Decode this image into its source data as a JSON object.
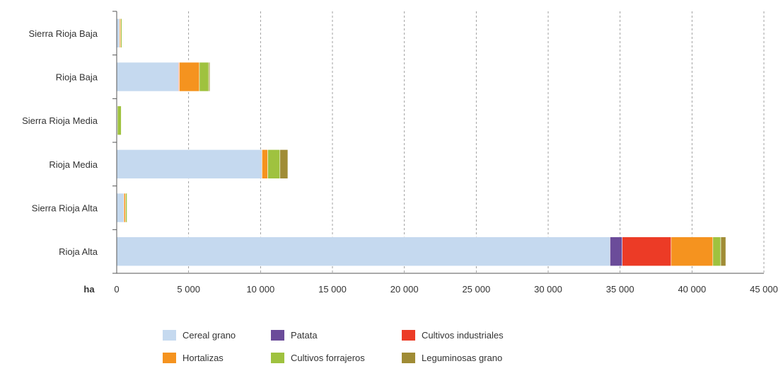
{
  "chart_data": {
    "type": "bar",
    "orientation": "horizontal",
    "stacked": true,
    "title": "",
    "xlabel": "ha",
    "ylabel": "",
    "xlim": [
      0,
      45000
    ],
    "x_ticks": [
      0,
      5000,
      10000,
      15000,
      20000,
      25000,
      30000,
      35000,
      40000,
      45000
    ],
    "x_tick_labels": [
      "0",
      "5 000",
      "10 000",
      "15 000",
      "20 000",
      "25 000",
      "30 000",
      "35 000",
      "40 000",
      "45 000"
    ],
    "grid": "vertical dashed",
    "legend_position": "bottom",
    "categories": [
      "Sierra Rioja Baja",
      "Rioja Baja",
      "Sierra Rioja Media",
      "Rioja Media",
      "Sierra Rioja Alta",
      "Rioja Alta"
    ],
    "series": [
      {
        "name": "Cereal grano",
        "color": "#c5d9ef",
        "values": [
          200,
          4300,
          30,
          10100,
          500,
          34300
        ]
      },
      {
        "name": "Patata",
        "color": "#6b4c9a",
        "values": [
          0,
          0,
          0,
          0,
          0,
          850
        ]
      },
      {
        "name": "Cultivos industriales",
        "color": "#ec3b26",
        "values": [
          0,
          50,
          0,
          0,
          0,
          3400
        ]
      },
      {
        "name": "Hortalizas",
        "color": "#f5931f",
        "values": [
          80,
          1400,
          20,
          400,
          120,
          2900
        ]
      },
      {
        "name": "Cultivos forrajeros",
        "color": "#9fc23f",
        "values": [
          80,
          650,
          270,
          850,
          100,
          550
        ]
      },
      {
        "name": "Leguminosas grano",
        "color": "#a08c35",
        "values": [
          20,
          80,
          20,
          550,
          30,
          350
        ]
      }
    ],
    "legend_rows": [
      [
        "Cereal grano",
        "Patata",
        "Cultivos industriales"
      ],
      [
        "Hortalizas",
        "Cultivos forrajeros",
        "Leguminosas grano"
      ]
    ]
  }
}
